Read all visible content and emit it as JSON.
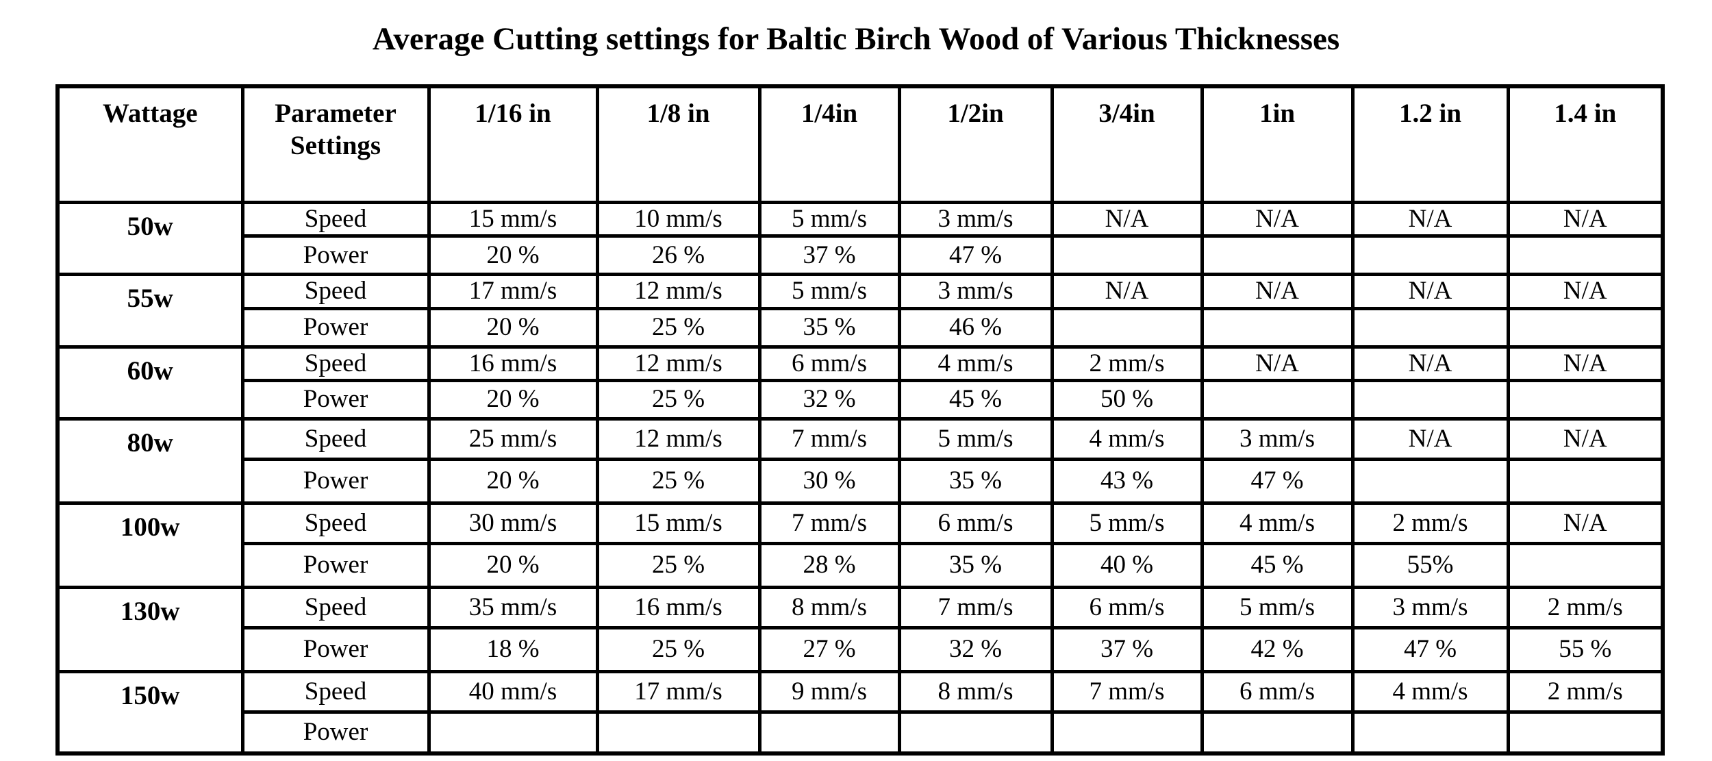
{
  "title": "Average Cutting settings for Baltic Birch Wood of Various Thicknesses",
  "colors": {
    "background": "#ffffff",
    "text": "#000000",
    "border": "#000000"
  },
  "table": {
    "headers": [
      "Wattage",
      "Parameter Settings",
      "1/16 in",
      "1/8 in",
      "1/4in",
      "1/2in",
      "3/4in",
      "1in",
      "1.2 in",
      "1.4 in"
    ],
    "speed_label": "Speed",
    "power_label": "Power",
    "rows": [
      {
        "wattage": "50w",
        "speed": [
          "15 mm/s",
          "10 mm/s",
          "5 mm/s",
          "3 mm/s",
          "N/A",
          "N/A",
          "N/A",
          "N/A"
        ],
        "power": [
          "20 %",
          "26 %",
          "37 %",
          "47 %",
          "",
          "",
          "",
          ""
        ]
      },
      {
        "wattage": "55w",
        "speed": [
          "17 mm/s",
          "12 mm/s",
          "5 mm/s",
          "3 mm/s",
          "N/A",
          "N/A",
          "N/A",
          "N/A"
        ],
        "power": [
          "20 %",
          "25 %",
          "35 %",
          "46 %",
          "",
          "",
          "",
          ""
        ]
      },
      {
        "wattage": "60w",
        "speed": [
          "16 mm/s",
          "12 mm/s",
          "6 mm/s",
          "4 mm/s",
          "2 mm/s",
          "N/A",
          "N/A",
          "N/A"
        ],
        "power": [
          "20 %",
          "25 %",
          "32 %",
          "45 %",
          "50 %",
          "",
          "",
          ""
        ]
      },
      {
        "wattage": "80w",
        "speed": [
          "25 mm/s",
          "12 mm/s",
          "7 mm/s",
          "5 mm/s",
          "4 mm/s",
          "3 mm/s",
          "N/A",
          "N/A"
        ],
        "power": [
          "20 %",
          "25 %",
          "30 %",
          "35 %",
          "43 %",
          "47 %",
          "",
          ""
        ]
      },
      {
        "wattage": "100w",
        "speed": [
          "30 mm/s",
          "15 mm/s",
          "7 mm/s",
          "6 mm/s",
          "5 mm/s",
          "4 mm/s",
          "2 mm/s",
          "N/A"
        ],
        "power": [
          "20 %",
          "25 %",
          "28 %",
          "35 %",
          "40 %",
          "45 %",
          "55%",
          ""
        ]
      },
      {
        "wattage": "130w",
        "speed": [
          "35 mm/s",
          "16 mm/s",
          "8 mm/s",
          "7 mm/s",
          "6 mm/s",
          "5 mm/s",
          "3 mm/s",
          "2 mm/s"
        ],
        "power": [
          "18 %",
          "25 %",
          "27 %",
          "32 %",
          "37 %",
          "42 %",
          "47 %",
          "55 %"
        ]
      },
      {
        "wattage": "150w",
        "speed": [
          "40 mm/s",
          "17 mm/s",
          "9 mm/s",
          "8 mm/s",
          "7 mm/s",
          "6 mm/s",
          "4 mm/s",
          "2 mm/s"
        ],
        "power": [
          "",
          "",
          "",
          "",
          "",
          "",
          "",
          ""
        ]
      }
    ]
  }
}
